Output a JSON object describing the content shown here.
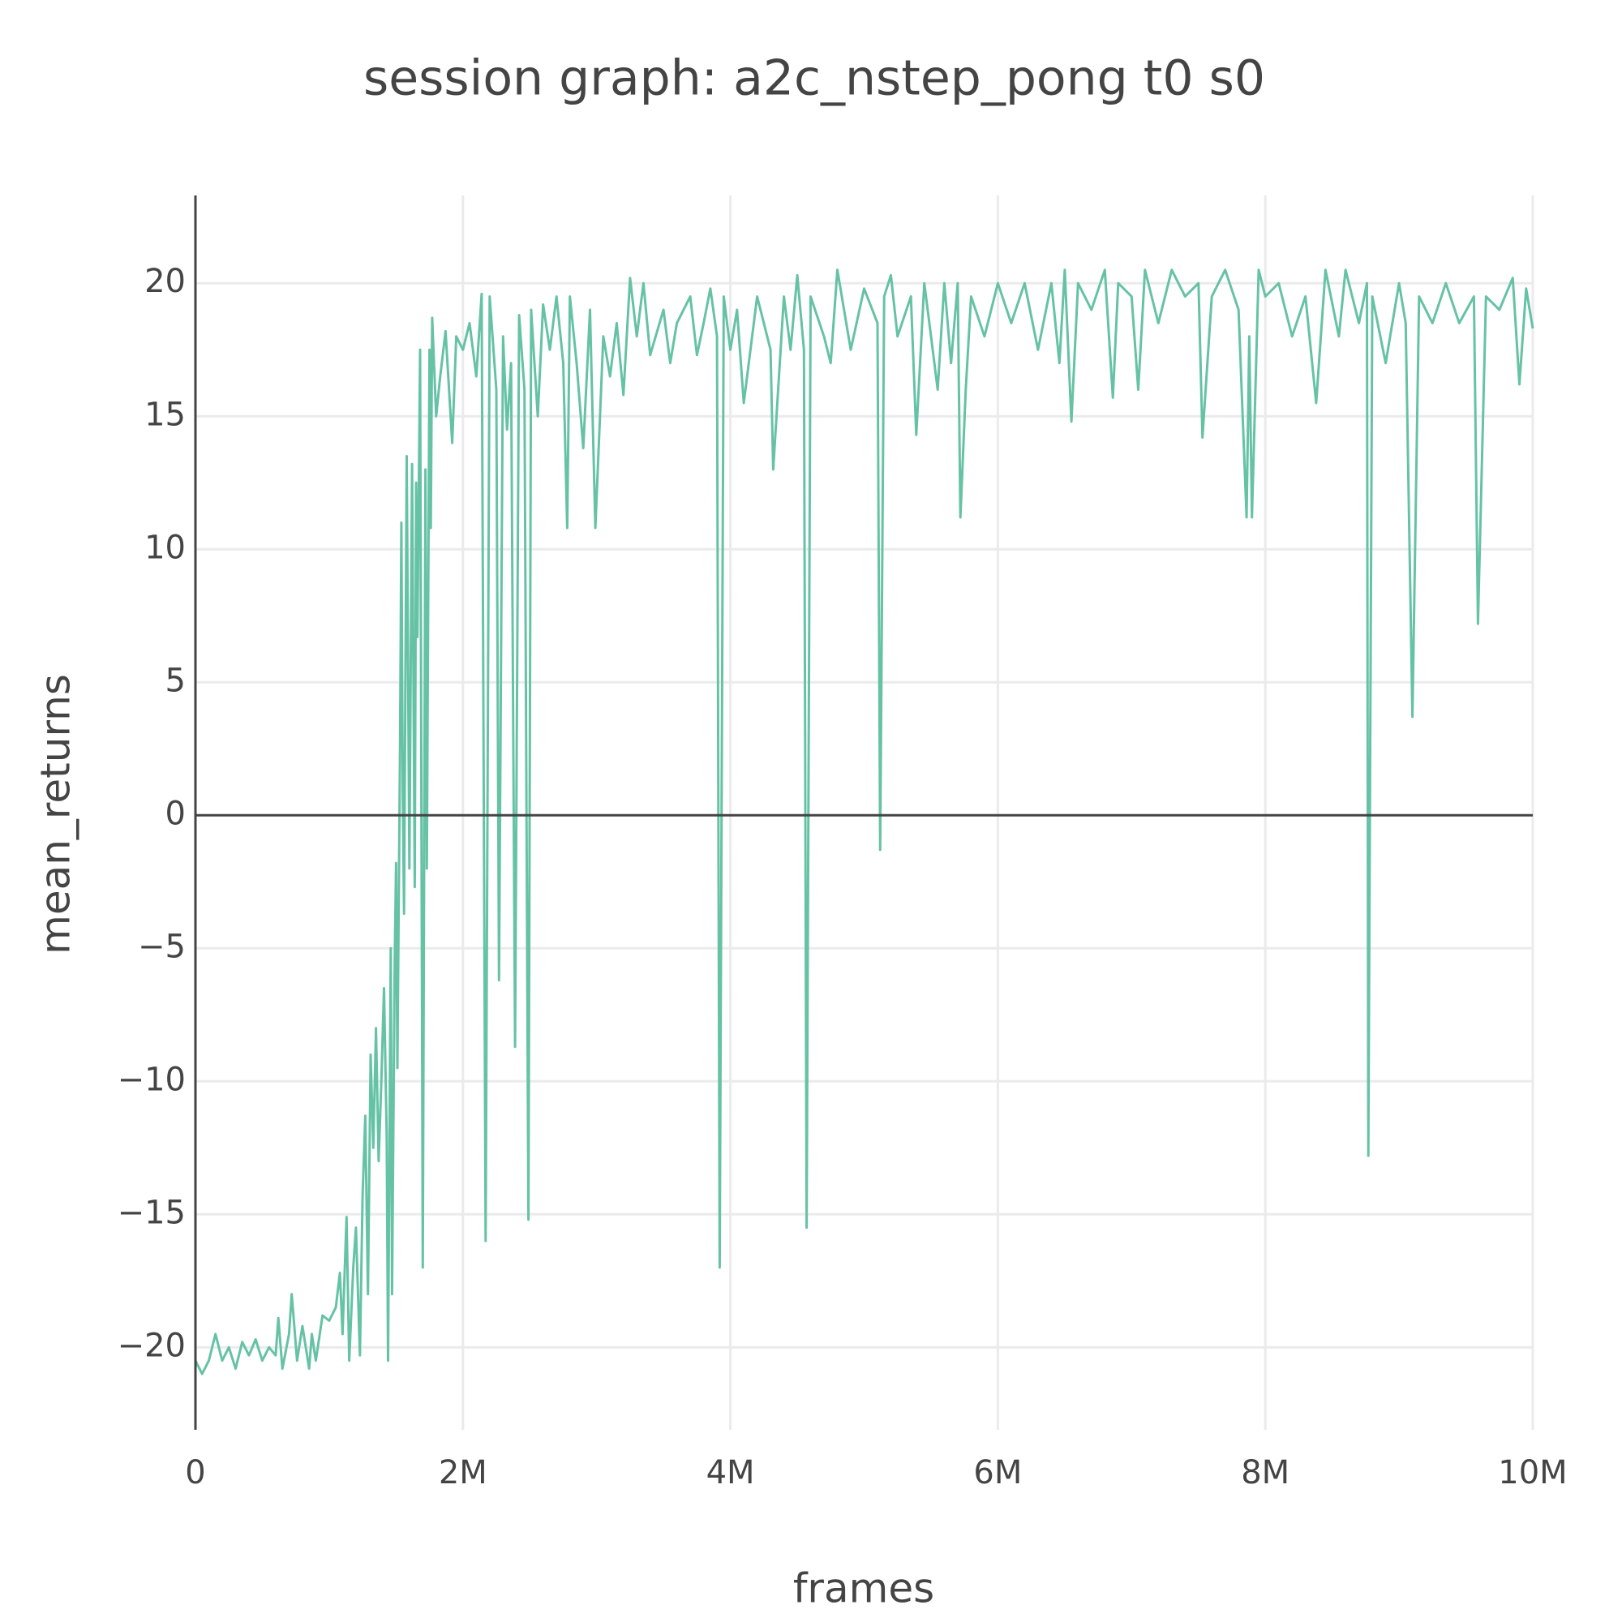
{
  "chart_data": {
    "type": "line",
    "title": "session graph: a2c_nstep_pong t0 s0",
    "x_label": "frames",
    "y_label": "mean_returns",
    "color": "#66c2a5",
    "grid": true,
    "xlim": [
      0,
      10000000
    ],
    "ylim": [
      -23.1,
      23.3
    ],
    "xticks": [
      0,
      {
        "value": 2000000,
        "label": "2M"
      },
      {
        "value": 4000000,
        "label": "4M"
      },
      {
        "value": 6000000,
        "label": "6M"
      },
      {
        "value": 8000000,
        "label": "8M"
      },
      {
        "value": 10000000,
        "label": "10M"
      }
    ],
    "yticks": [
      {
        "value": -20,
        "label": "−20"
      },
      {
        "value": -15,
        "label": "−15"
      },
      {
        "value": -10,
        "label": "−10"
      },
      {
        "value": -5,
        "label": "−5"
      },
      0,
      5,
      10,
      15,
      20
    ],
    "x": [
      0,
      50000,
      100000,
      150000,
      200000,
      250000,
      300000,
      350000,
      400000,
      450000,
      500000,
      550000,
      600000,
      620000,
      650000,
      700000,
      720000,
      760000,
      800000,
      850000,
      870000,
      900000,
      950000,
      1000000,
      1050000,
      1080000,
      1100000,
      1130000,
      1150000,
      1180000,
      1200000,
      1230000,
      1250000,
      1270000,
      1290000,
      1310000,
      1330000,
      1350000,
      1370000,
      1390000,
      1410000,
      1430000,
      1440000,
      1460000,
      1470000,
      1490000,
      1500000,
      1510000,
      1530000,
      1540000,
      1550000,
      1560000,
      1580000,
      1600000,
      1620000,
      1640000,
      1650000,
      1660000,
      1680000,
      1700000,
      1720000,
      1730000,
      1750000,
      1760000,
      1770000,
      1800000,
      1830000,
      1870000,
      1920000,
      1950000,
      2000000,
      2050000,
      2100000,
      2140000,
      2170000,
      2200000,
      2250000,
      2270000,
      2300000,
      2330000,
      2360000,
      2390000,
      2420000,
      2460000,
      2490000,
      2510000,
      2560000,
      2600000,
      2650000,
      2700000,
      2750000,
      2780000,
      2800000,
      2850000,
      2900000,
      2950000,
      2990000,
      3050000,
      3100000,
      3150000,
      3200000,
      3250000,
      3300000,
      3350000,
      3400000,
      3500000,
      3550000,
      3600000,
      3700000,
      3750000,
      3800000,
      3850000,
      3900000,
      3920000,
      3950000,
      4000000,
      4050000,
      4100000,
      4200000,
      4300000,
      4320000,
      4400000,
      4450000,
      4500000,
      4550000,
      4570000,
      4600000,
      4700000,
      4750000,
      4800000,
      4900000,
      5000000,
      5100000,
      5120000,
      5150000,
      5200000,
      5250000,
      5350000,
      5390000,
      5450000,
      5500000,
      5550000,
      5600000,
      5650000,
      5700000,
      5720000,
      5760000,
      5800000,
      5900000,
      6000000,
      6100000,
      6200000,
      6300000,
      6400000,
      6460000,
      6500000,
      6550000,
      6600000,
      6700000,
      6800000,
      6860000,
      6900000,
      7000000,
      7050000,
      7100000,
      7200000,
      7300000,
      7400000,
      7500000,
      7530000,
      7600000,
      7700000,
      7800000,
      7860000,
      7880000,
      7900000,
      7950000,
      8000000,
      8100000,
      8200000,
      8300000,
      8380000,
      8450000,
      8550000,
      8600000,
      8700000,
      8760000,
      8770000,
      8800000,
      8900000,
      9000000,
      9050000,
      9100000,
      9150000,
      9250000,
      9350000,
      9450000,
      9560000,
      9590000,
      9650000,
      9750000,
      9850000,
      9900000,
      9950000,
      10000000
    ],
    "values": [
      -20.5,
      -21,
      -20.5,
      -19.5,
      -20.5,
      -20,
      -20.8,
      -19.8,
      -20.3,
      -19.7,
      -20.5,
      -20,
      -20.3,
      -18.9,
      -20.8,
      -19.5,
      -18,
      -20.5,
      -19.2,
      -20.8,
      -19.5,
      -20.5,
      -18.8,
      -19,
      -18.5,
      -17.2,
      -19.5,
      -15.1,
      -20.5,
      -17,
      -15.5,
      -20.3,
      -14.3,
      -11.3,
      -18,
      -9,
      -12.5,
      -8,
      -13,
      -10,
      -6.5,
      -12,
      -20.5,
      -5,
      -18,
      -5.5,
      -1.8,
      -9.5,
      2.7,
      11,
      0.9,
      -3.7,
      13.5,
      -2,
      13.2,
      -2.7,
      12.5,
      6.7,
      17.5,
      -17,
      13,
      -2,
      17.5,
      10.8,
      18.7,
      15,
      16.5,
      18.2,
      14,
      18,
      17.5,
      18.5,
      16.5,
      19.6,
      -16,
      19.5,
      16,
      -6.2,
      18,
      14.5,
      17,
      -8.7,
      18.8,
      16,
      -15.2,
      19,
      15,
      19.2,
      17.5,
      19.5,
      17,
      10.8,
      19.5,
      17,
      13.8,
      19,
      10.8,
      18,
      16.5,
      18.5,
      15.8,
      20.2,
      18,
      20,
      17.3,
      19,
      17,
      18.5,
      19.5,
      17.3,
      18.5,
      19.8,
      18,
      -17,
      19.5,
      17.5,
      19,
      15.5,
      19.5,
      17.5,
      13,
      19.5,
      17.5,
      20.3,
      17.5,
      -15.5,
      19.5,
      18,
      17,
      20.5,
      17.5,
      19.8,
      18.5,
      -1.3,
      19.5,
      20.3,
      18,
      19.5,
      14.3,
      20,
      18,
      16,
      20,
      17,
      20,
      11.2,
      16,
      19.5,
      18,
      20,
      18.5,
      20,
      17.5,
      20,
      17,
      20.5,
      14.8,
      20,
      19,
      20.5,
      15.7,
      20,
      19.5,
      16,
      20.5,
      18.5,
      20.5,
      19.5,
      20,
      14.2,
      19.5,
      20.5,
      19,
      11.2,
      18,
      11.2,
      20.5,
      19.5,
      20,
      18,
      19.5,
      15.5,
      20.5,
      18,
      20.5,
      18.5,
      20,
      -12.8,
      19.5,
      17,
      20,
      18.5,
      3.7,
      19.5,
      18.5,
      20,
      18.5,
      19.5,
      7.2,
      19.5,
      19,
      20.2,
      16.2,
      19.8,
      18.3
    ]
  }
}
